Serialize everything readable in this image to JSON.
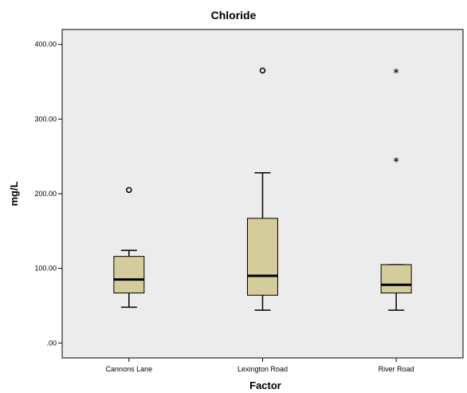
{
  "chart_data": {
    "type": "boxplot",
    "title": "Chloride",
    "xlabel": "Factor",
    "ylabel": "mg/L",
    "ylim": [
      -20,
      420
    ],
    "yticks": [
      0,
      100,
      200,
      300,
      400
    ],
    "ytick_labels": [
      ".00",
      "100.00",
      "200.00",
      "300.00",
      "400.00"
    ],
    "grid": false,
    "colors": {
      "plot_bg": "#ececec",
      "box_fill": "#d4cc9a",
      "stroke": "#000000"
    },
    "categories": [
      "Cannons Lane",
      "Lexington Road",
      "River Road"
    ],
    "boxes": [
      {
        "category": "Cannons Lane",
        "whisker_low": 48,
        "q1": 67,
        "median": 85,
        "q3": 116,
        "whisker_high": 124,
        "outliers": [
          205
        ],
        "extremes": []
      },
      {
        "category": "Lexington Road",
        "whisker_low": 44,
        "q1": 64,
        "median": 90,
        "q3": 167,
        "whisker_high": 228,
        "outliers": [
          365
        ],
        "extremes": []
      },
      {
        "category": "River Road",
        "whisker_low": 44,
        "q1": 67,
        "median": 78,
        "q3": 105,
        "whisker_high": 105,
        "outliers": [],
        "extremes": [
          246,
          365
        ]
      }
    ]
  }
}
